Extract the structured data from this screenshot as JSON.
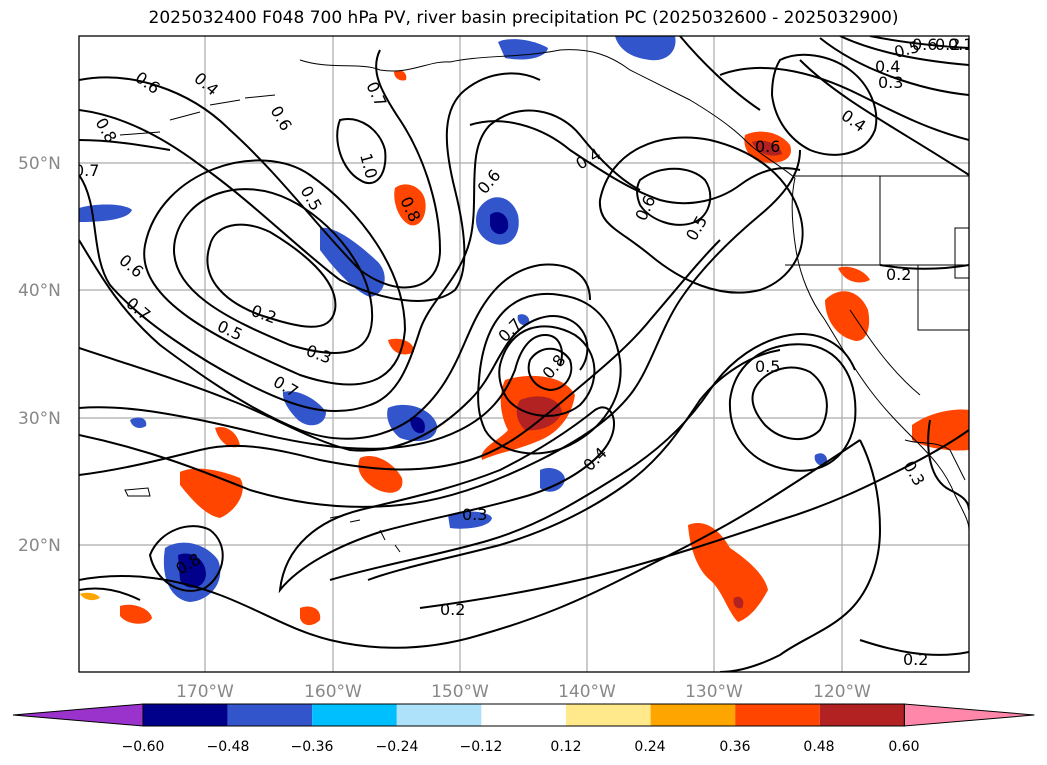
{
  "title": "2025032400 F048 700 hPa PV, river basin precipitation PC (2025032600 - 2025032900)",
  "lat_labels": [
    "50°N",
    "40°N",
    "30°N",
    "20°N"
  ],
  "lon_labels": [
    "170°W",
    "160°W",
    "150°W",
    "140°W",
    "130°W",
    "120°W"
  ],
  "colorbar": {
    "extend": "both",
    "colors": [
      "#9933cc",
      "#00008b",
      "#3355cc",
      "#00bfff",
      "#aee2fa",
      "#ffffff",
      "#ffe98a",
      "#ffa500",
      "#ff4500",
      "#b22222",
      "#ff88aa"
    ],
    "ticks": [
      "−0.60",
      "−0.48",
      "−0.36",
      "−0.24",
      "−0.12",
      "0.12",
      "0.24",
      "0.36",
      "0.48",
      "0.60"
    ]
  },
  "contour_labels": [
    "0.6",
    "0.4",
    "0.8",
    "0.7",
    "0.6",
    "0.7",
    "1.0",
    "0.8",
    "0.5",
    "0.6",
    "0.7",
    "0.2",
    "0.5",
    "0.3",
    "0.7",
    "0.6",
    "0.4",
    "0.6",
    "0.5",
    "0.7",
    "0.8",
    "0.4",
    "0.5",
    "0.3",
    "0.2",
    "0.2",
    "0.6",
    "0.5",
    "0.4",
    "0.3",
    "0.4",
    "0.6",
    "0.2",
    "0.3",
    "0.8",
    "0.2",
    "0.1"
  ]
}
